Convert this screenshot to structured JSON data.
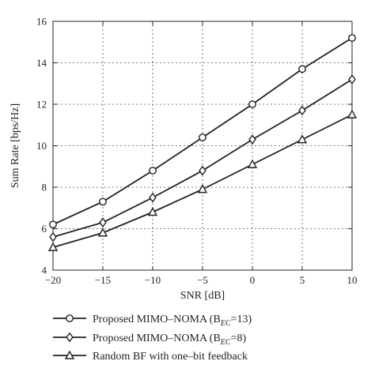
{
  "chart_data": {
    "type": "line",
    "xlabel": "SNR [dB]",
    "ylabel": "Sum Rate [bps/Hz]",
    "xlim": [
      -20,
      10
    ],
    "ylim": [
      4,
      16
    ],
    "x_ticks": [
      -20,
      -15,
      -10,
      -5,
      0,
      5,
      10
    ],
    "y_ticks": [
      4,
      6,
      8,
      10,
      12,
      14,
      16
    ],
    "grid": true,
    "legend_placement": "bottom",
    "x": [
      -20,
      -15,
      -10,
      -5,
      0,
      5,
      10
    ],
    "series": [
      {
        "name": "Proposed MIMO–NOMA (B",
        "name_sub": "EC",
        "name_tail": "=13)",
        "marker": "circle",
        "values": [
          6.2,
          7.3,
          8.8,
          10.4,
          12.0,
          13.7,
          15.2
        ]
      },
      {
        "name": "Proposed MIMO–NOMA (B",
        "name_sub": "EC",
        "name_tail": "=8)",
        "marker": "diamond",
        "values": [
          5.6,
          6.3,
          7.5,
          8.8,
          10.3,
          11.7,
          13.2
        ]
      },
      {
        "name": "Random BF with one–bit feedback",
        "name_sub": "",
        "name_tail": "",
        "marker": "triangle",
        "values": [
          5.1,
          5.8,
          6.8,
          7.9,
          9.1,
          10.3,
          11.5
        ]
      }
    ]
  }
}
